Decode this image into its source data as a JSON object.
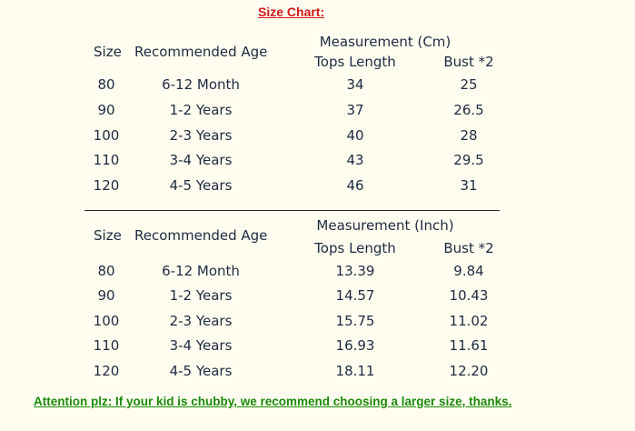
{
  "title": "Size Chart:",
  "tables": [
    {
      "measurement_header": "Measurement (Cm)",
      "columns": [
        "Size",
        "Recommended Age",
        "Tops Length",
        "Bust *2"
      ],
      "rows": [
        [
          "80",
          "6-12 Month",
          "34",
          "25"
        ],
        [
          "90",
          "1-2 Years",
          "37",
          "26.5"
        ],
        [
          "100",
          "2-3 Years",
          "40",
          "28"
        ],
        [
          "110",
          "3-4 Years",
          "43",
          "29.5"
        ],
        [
          "120",
          "4-5 Years",
          "46",
          "31"
        ]
      ]
    },
    {
      "measurement_header": "Measurement (Inch)",
      "columns": [
        "Size",
        "Recommended Age",
        "Tops Length",
        "Bust *2"
      ],
      "rows": [
        [
          "80",
          "6-12 Month",
          "13.39",
          "9.84"
        ],
        [
          "90",
          "1-2 Years",
          "14.57",
          "10.43"
        ],
        [
          "100",
          "2-3 Years",
          "15.75",
          "11.02"
        ],
        [
          "110",
          "3-4 Years",
          "16.93",
          "11.61"
        ],
        [
          "120",
          "4-5 Years",
          "18.11",
          "12.20"
        ]
      ]
    }
  ],
  "attention": "Attention plz: If your kid is chubby, we recommend choosing a larger size, thanks."
}
